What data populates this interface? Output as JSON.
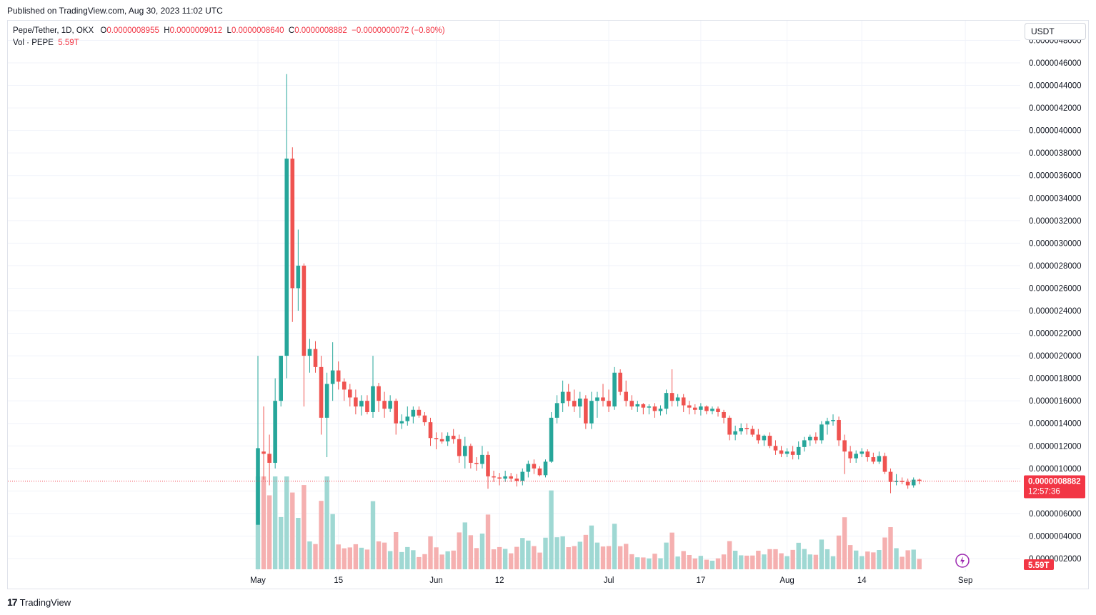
{
  "header": {
    "published": "Published on TradingView.com, Aug 30, 2023 11:02 UTC"
  },
  "legend": {
    "symbol": "Pepe/Tether, 1D, OKX",
    "o_label": "O",
    "o_value": "0.0000008955",
    "h_label": "H",
    "h_value": "0.0000009012",
    "l_label": "L",
    "l_value": "0.0000008640",
    "c_label": "C",
    "c_value": "0.0000008882",
    "change": "−0.0000000072 (−0.80%)",
    "vol_label": "Vol · PEPE",
    "vol_value": "5.59T"
  },
  "currency": "USDT",
  "price_tag": {
    "price": "0.0000008882",
    "countdown": "12:57:36"
  },
  "volume_tag": "5.59T",
  "footer": {
    "logo_text": "TradingView"
  },
  "colors": {
    "up": "#26a69a",
    "down": "#ef5350",
    "up_vol": "#9fd8d3",
    "down_vol": "#f5b0b0",
    "tag": "#f23645"
  },
  "chart_data": {
    "type": "candlestick",
    "symbol": "Pepe/Tether",
    "interval": "1D",
    "exchange": "OKX",
    "ylim": [
      1e-07,
      4.8e-06
    ],
    "y_ticks": [
      "0.0000002000",
      "0.0000004000",
      "0.0000006000",
      "0.0000008000",
      "0.0000010000",
      "0.0000012000",
      "0.0000014000",
      "0.0000016000",
      "0.0000018000",
      "0.0000020000",
      "0.0000022000",
      "0.0000024000",
      "0.0000026000",
      "0.0000028000",
      "0.0000030000",
      "0.0000032000",
      "0.0000034000",
      "0.0000036000",
      "0.0000038000",
      "0.0000040000",
      "0.0000042000",
      "0.0000044000",
      "0.0000046000",
      "0.0000048000"
    ],
    "x_ticks": [
      {
        "label": "May",
        "day": 0
      },
      {
        "label": "15",
        "day": 14
      },
      {
        "label": "Jun",
        "day": 31
      },
      {
        "label": "12",
        "day": 42
      },
      {
        "label": "Jul",
        "day": 61
      },
      {
        "label": "17",
        "day": 77
      },
      {
        "label": "Aug",
        "day": 92
      },
      {
        "label": "14",
        "day": 105
      },
      {
        "label": "Sep",
        "day": 123
      }
    ],
    "last_price": 8.882e-07,
    "candles": [
      [
        5e-07,
        2e-06,
        5e-07,
        1.18e-06
      ],
      [
        1.15e-06,
        1.55e-06,
        9e-07,
        1.13e-06
      ],
      [
        1.13e-06,
        1.3e-06,
        8.5e-07,
        1.05e-06
      ],
      [
        1.05e-06,
        1.8e-06,
        1e-06,
        1.6e-06
      ],
      [
        1.6e-06,
        2e-06,
        1.55e-06,
        2e-06
      ],
      [
        2e-06,
        4.5e-06,
        1.8e-06,
        3.75e-06
      ],
      [
        3.75e-06,
        3.85e-06,
        2.3e-06,
        2.6e-06
      ],
      [
        2.6e-06,
        3.12e-06,
        2.4e-06,
        2.8e-06
      ],
      [
        2.8e-06,
        2.82e-06,
        1.55e-06,
        2e-06
      ],
      [
        2e-06,
        2.15e-06,
        1.85e-06,
        2.06e-06
      ],
      [
        2.06e-06,
        2.13e-06,
        1.85e-06,
        1.9e-06
      ],
      [
        1.9e-06,
        2e-06,
        1.3e-06,
        1.45e-06
      ],
      [
        1.45e-06,
        1.85e-06,
        1.1e-06,
        1.75e-06
      ],
      [
        1.75e-06,
        2.12e-06,
        1.6e-06,
        1.87e-06
      ],
      [
        1.87e-06,
        1.95e-06,
        1.7e-06,
        1.77e-06
      ],
      [
        1.77e-06,
        1.8e-06,
        1.6e-06,
        1.7e-06
      ],
      [
        1.7e-06,
        1.75e-06,
        1.55e-06,
        1.63e-06
      ],
      [
        1.63e-06,
        1.7e-06,
        1.48e-06,
        1.55e-06
      ],
      [
        1.55e-06,
        1.65e-06,
        1.47e-06,
        1.6e-06
      ],
      [
        1.6e-06,
        1.65e-06,
        1.48e-06,
        1.5e-06
      ],
      [
        1.5e-06,
        2e-06,
        1.45e-06,
        1.73e-06
      ],
      [
        1.73e-06,
        1.76e-06,
        1.5e-06,
        1.6e-06
      ],
      [
        1.6e-06,
        1.68e-06,
        1.45e-06,
        1.53e-06
      ],
      [
        1.53e-06,
        1.65e-06,
        1.5e-06,
        1.6e-06
      ],
      [
        1.6e-06,
        1.62e-06,
        1.3e-06,
        1.4e-06
      ],
      [
        1.4e-06,
        1.48e-06,
        1.35e-06,
        1.42e-06
      ],
      [
        1.42e-06,
        1.55e-06,
        1.38e-06,
        1.46e-06
      ],
      [
        1.46e-06,
        1.55e-06,
        1.4e-06,
        1.52e-06
      ],
      [
        1.52e-06,
        1.55e-06,
        1.45e-06,
        1.47e-06
      ],
      [
        1.47e-06,
        1.5e-06,
        1.38e-06,
        1.41e-06
      ],
      [
        1.41e-06,
        1.45e-06,
        1.2e-06,
        1.27e-06
      ],
      [
        1.27e-06,
        1.32e-06,
        1.17e-06,
        1.26e-06
      ],
      [
        1.26e-06,
        1.32e-06,
        1.22e-06,
        1.24e-06
      ],
      [
        1.24e-06,
        1.32e-06,
        1.2e-06,
        1.29e-06
      ],
      [
        1.29e-06,
        1.35e-06,
        1.22e-06,
        1.26e-06
      ],
      [
        1.26e-06,
        1.3e-06,
        1.05e-06,
        1.11e-06
      ],
      [
        1.11e-06,
        1.28e-06,
        1e-06,
        1.2e-06
      ],
      [
        1.2e-06,
        1.22e-06,
        1e-06,
        1.05e-06
      ],
      [
        1.05e-06,
        1.1e-06,
        9.8e-07,
        1.04e-06
      ],
      [
        1.04e-06,
        1.2e-06,
        1e-06,
        1.12e-06
      ],
      [
        1.12e-06,
        1.15e-06,
        8.2e-07,
        9.3e-07
      ],
      [
        9.3e-07,
        9.8e-07,
        8.8e-07,
        9.2e-07
      ],
      [
        9.2e-07,
        9.6e-07,
        8.5e-07,
        9.1e-07
      ],
      [
        9.1e-07,
        9.8e-07,
        8.8e-07,
        9.3e-07
      ],
      [
        9.3e-07,
        9.6e-07,
        8.8e-07,
        9.1e-07
      ],
      [
        9.1e-07,
        9.5e-07,
        8.4e-07,
        8.9e-07
      ],
      [
        8.9e-07,
        1e-06,
        8.5e-07,
        9.7e-07
      ],
      [
        9.7e-07,
        1.07e-06,
        9.2e-07,
        1.04e-06
      ],
      [
        1.04e-06,
        1.08e-06,
        9.5e-07,
        1e-06
      ],
      [
        1e-06,
        1.02e-06,
        9.3e-07,
        9.4e-07
      ],
      [
        9.4e-07,
        1.08e-06,
        9.2e-07,
        1.06e-06
      ],
      [
        1.06e-06,
        1.5e-06,
        1.05e-06,
        1.45e-06
      ],
      [
        1.45e-06,
        1.65e-06,
        1.4e-06,
        1.58e-06
      ],
      [
        1.58e-06,
        1.78e-06,
        1.5e-06,
        1.68e-06
      ],
      [
        1.68e-06,
        1.75e-06,
        1.55e-06,
        1.6e-06
      ],
      [
        1.6e-06,
        1.7e-06,
        1.5e-06,
        1.55e-06
      ],
      [
        1.55e-06,
        1.68e-06,
        1.45e-06,
        1.62e-06
      ],
      [
        1.62e-06,
        1.65e-06,
        1.35e-06,
        1.4e-06
      ],
      [
        1.4e-06,
        1.68e-06,
        1.35e-06,
        1.6e-06
      ],
      [
        1.6e-06,
        1.68e-06,
        1.45e-06,
        1.63e-06
      ],
      [
        1.63e-06,
        1.75e-06,
        1.55e-06,
        1.6e-06
      ],
      [
        1.6e-06,
        1.7e-06,
        1.5e-06,
        1.55e-06
      ],
      [
        1.55e-06,
        1.9e-06,
        1.52e-06,
        1.85e-06
      ],
      [
        1.85e-06,
        1.88e-06,
        1.65e-06,
        1.68e-06
      ],
      [
        1.68e-06,
        1.78e-06,
        1.55e-06,
        1.6e-06
      ],
      [
        1.6e-06,
        1.65e-06,
        1.52e-06,
        1.55e-06
      ],
      [
        1.55e-06,
        1.6e-06,
        1.5e-06,
        1.57e-06
      ],
      [
        1.57e-06,
        1.58e-06,
        1.48e-06,
        1.54e-06
      ],
      [
        1.54e-06,
        1.57e-06,
        1.48e-06,
        1.55e-06
      ],
      [
        1.55e-06,
        1.58e-06,
        1.45e-06,
        1.51e-06
      ],
      [
        1.51e-06,
        1.56e-06,
        1.47e-06,
        1.53e-06
      ],
      [
        1.53e-06,
        1.7e-06,
        1.48e-06,
        1.67e-06
      ],
      [
        1.67e-06,
        1.88e-06,
        1.55e-06,
        1.6e-06
      ],
      [
        1.6e-06,
        1.66e-06,
        1.55e-06,
        1.63e-06
      ],
      [
        1.63e-06,
        1.66e-06,
        1.5e-06,
        1.56e-06
      ],
      [
        1.56e-06,
        1.6e-06,
        1.48e-06,
        1.54e-06
      ],
      [
        1.54e-06,
        1.57e-06,
        1.48e-06,
        1.52e-06
      ],
      [
        1.52e-06,
        1.58e-06,
        1.47e-06,
        1.55e-06
      ],
      [
        1.55e-06,
        1.56e-06,
        1.48e-06,
        1.51e-06
      ],
      [
        1.51e-06,
        1.55e-06,
        1.48e-06,
        1.53e-06
      ],
      [
        1.53e-06,
        1.55e-06,
        1.46e-06,
        1.5e-06
      ],
      [
        1.5e-06,
        1.52e-06,
        1.4e-06,
        1.45e-06
      ],
      [
        1.45e-06,
        1.47e-06,
        1.25e-06,
        1.3e-06
      ],
      [
        1.3e-06,
        1.38e-06,
        1.25e-06,
        1.33e-06
      ],
      [
        1.33e-06,
        1.4e-06,
        1.3e-06,
        1.36e-06
      ],
      [
        1.36e-06,
        1.4e-06,
        1.3e-06,
        1.35e-06
      ],
      [
        1.35e-06,
        1.38e-06,
        1.28e-06,
        1.3e-06
      ],
      [
        1.3e-06,
        1.35e-06,
        1.22e-06,
        1.25e-06
      ],
      [
        1.25e-06,
        1.3e-06,
        1.2e-06,
        1.29e-06
      ],
      [
        1.29e-06,
        1.32e-06,
        1.18e-06,
        1.2e-06
      ],
      [
        1.2e-06,
        1.25e-06,
        1.12e-06,
        1.16e-06
      ],
      [
        1.16e-06,
        1.2e-06,
        1.1e-06,
        1.13e-06
      ],
      [
        1.13e-06,
        1.18e-06,
        1.1e-06,
        1.15e-06
      ],
      [
        1.15e-06,
        1.2e-06,
        1.08e-06,
        1.12e-06
      ],
      [
        1.12e-06,
        1.24e-06,
        1.08e-06,
        1.19e-06
      ],
      [
        1.19e-06,
        1.28e-06,
        1.15e-06,
        1.25e-06
      ],
      [
        1.25e-06,
        1.3e-06,
        1.2e-06,
        1.28e-06
      ],
      [
        1.28e-06,
        1.32e-06,
        1.22e-06,
        1.25e-06
      ],
      [
        1.25e-06,
        1.42e-06,
        1.22e-06,
        1.39e-06
      ],
      [
        1.39e-06,
        1.45e-06,
        1.3e-06,
        1.42e-06
      ],
      [
        1.42e-06,
        1.48e-06,
        1.38e-06,
        1.43e-06
      ],
      [
        1.43e-06,
        1.46e-06,
        1.2e-06,
        1.25e-06
      ],
      [
        1.25e-06,
        1.3e-06,
        9.5e-07,
        1.15e-06
      ],
      [
        1.15e-06,
        1.2e-06,
        1.05e-06,
        1.09e-06
      ],
      [
        1.09e-06,
        1.16e-06,
        1.05e-06,
        1.13e-06
      ],
      [
        1.13e-06,
        1.18e-06,
        1.1e-06,
        1.15e-06
      ],
      [
        1.15e-06,
        1.17e-06,
        1.06e-06,
        1.1e-06
      ],
      [
        1.1e-06,
        1.14e-06,
        1.04e-06,
        1.06e-06
      ],
      [
        1.06e-06,
        1.15e-06,
        1.04e-06,
        1.11e-06
      ],
      [
        1.11e-06,
        1.14e-06,
        9.5e-07,
        9.7e-07
      ],
      [
        9.7e-07,
        1e-06,
        7.8e-07,
        8.8e-07
      ],
      [
        8.8e-07,
        9.5e-07,
        8.5e-07,
        8.9e-07
      ],
      [
        8.9e-07,
        9.2e-07,
        8.6e-07,
        8.8e-07
      ],
      [
        8.8e-07,
        9.1e-07,
        8.2e-07,
        8.5e-07
      ],
      [
        8.5e-07,
        9.2e-07,
        8.3e-07,
        9e-07
      ],
      [
        9e-07,
        9.1e-07,
        8.6e-07,
        8.9e-07
      ]
    ],
    "volume_direction_note_free": true
  }
}
